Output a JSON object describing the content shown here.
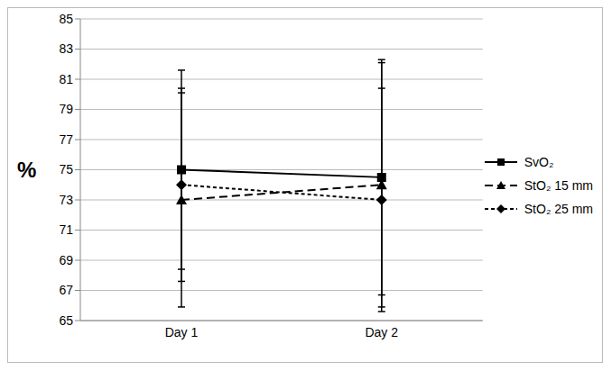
{
  "chart_data": {
    "type": "line",
    "y_label": "%",
    "categories": [
      "Day 1",
      "Day 2"
    ],
    "ylim": [
      65,
      85
    ],
    "yticks": [
      65,
      67,
      69,
      71,
      73,
      75,
      77,
      79,
      81,
      83,
      85
    ],
    "grid": true,
    "legend": "right",
    "series": [
      {
        "name": "SvO₂",
        "color": "#000000",
        "marker": "square",
        "line_style": "solid",
        "values": [
          75,
          74.5
        ],
        "error": [
          6.6,
          7.8
        ]
      },
      {
        "name": "StO₂ 15 mm",
        "color": "#000000",
        "marker": "triangle",
        "line_style": "dashed",
        "values": [
          73,
          74
        ],
        "error": [
          7.1,
          8.1
        ]
      },
      {
        "name": "StO₂ 25 mm",
        "color": "#000000",
        "marker": "diamond",
        "line_style": "dotted",
        "values": [
          74,
          73
        ],
        "error": [
          6.4,
          7.4
        ]
      }
    ]
  }
}
